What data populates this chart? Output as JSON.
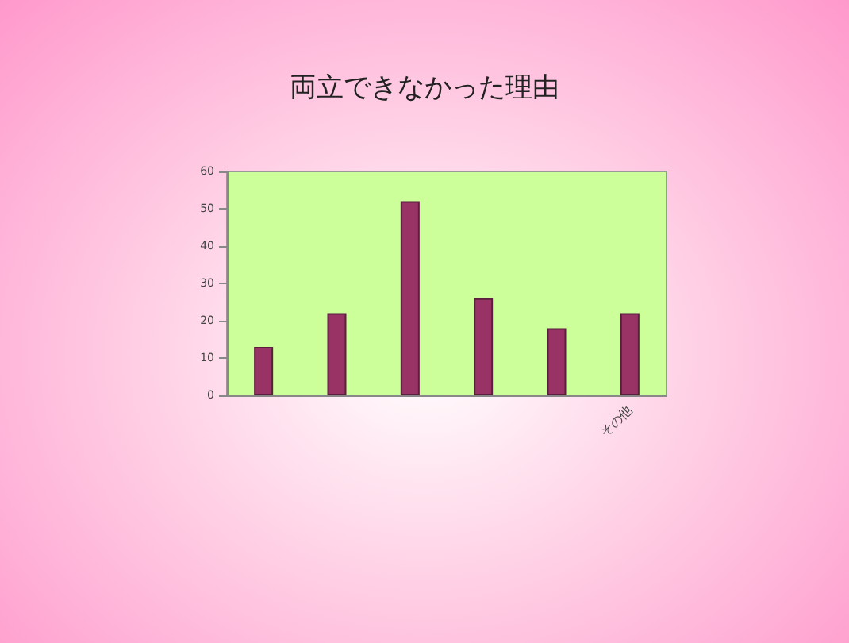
{
  "chart_data": {
    "type": "bar",
    "title": "両立できなかった理由",
    "categories": [
      null,
      null,
      null,
      null,
      null,
      "その他"
    ],
    "values": [
      13,
      22,
      52,
      26,
      18,
      22
    ],
    "color": "#993366",
    "ylim": [
      0,
      60
    ],
    "yticks": [
      0,
      10,
      20,
      30,
      40,
      50,
      60
    ],
    "grid": false
  }
}
